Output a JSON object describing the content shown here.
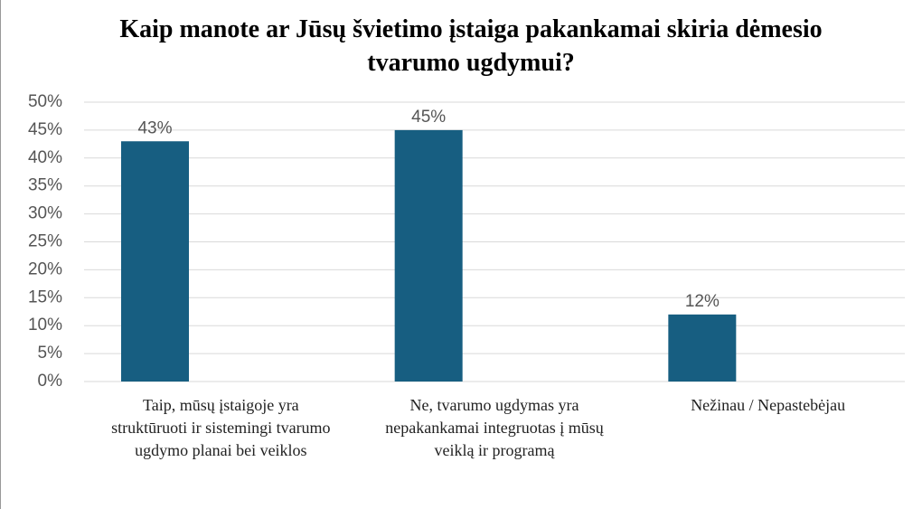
{
  "chart_data": {
    "type": "bar",
    "title": "Kaip manote ar Jūsų švietimo įstaiga pakankamai skiria dėmesio tvarumo ugdymui?",
    "categories": [
      "Taip, mūsų įstaigoje yra struktūruoti ir sistemingi tvarumo ugdymo planai bei veiklos",
      "Ne, tvarumo ugdymas yra nepakankamai integruotas į mūsų veiklą ir programą",
      "Nežinau / Nepastebėjau"
    ],
    "values": [
      43,
      45,
      12
    ],
    "value_labels": [
      "43%",
      "45%",
      "12%"
    ],
    "color": "#175e81",
    "ylim": [
      0,
      50
    ],
    "yticks": [
      {
        "value": 0,
        "label": "0%"
      },
      {
        "value": 5,
        "label": "5%"
      },
      {
        "value": 10,
        "label": "10%"
      },
      {
        "value": 15,
        "label": "15%"
      },
      {
        "value": 20,
        "label": "20%"
      },
      {
        "value": 25,
        "label": "25%"
      },
      {
        "value": 30,
        "label": "30%"
      },
      {
        "value": 35,
        "label": "35%"
      },
      {
        "value": 40,
        "label": "40%"
      },
      {
        "value": 45,
        "label": "45%"
      },
      {
        "value": 50,
        "label": "50%"
      }
    ],
    "grid": true
  }
}
